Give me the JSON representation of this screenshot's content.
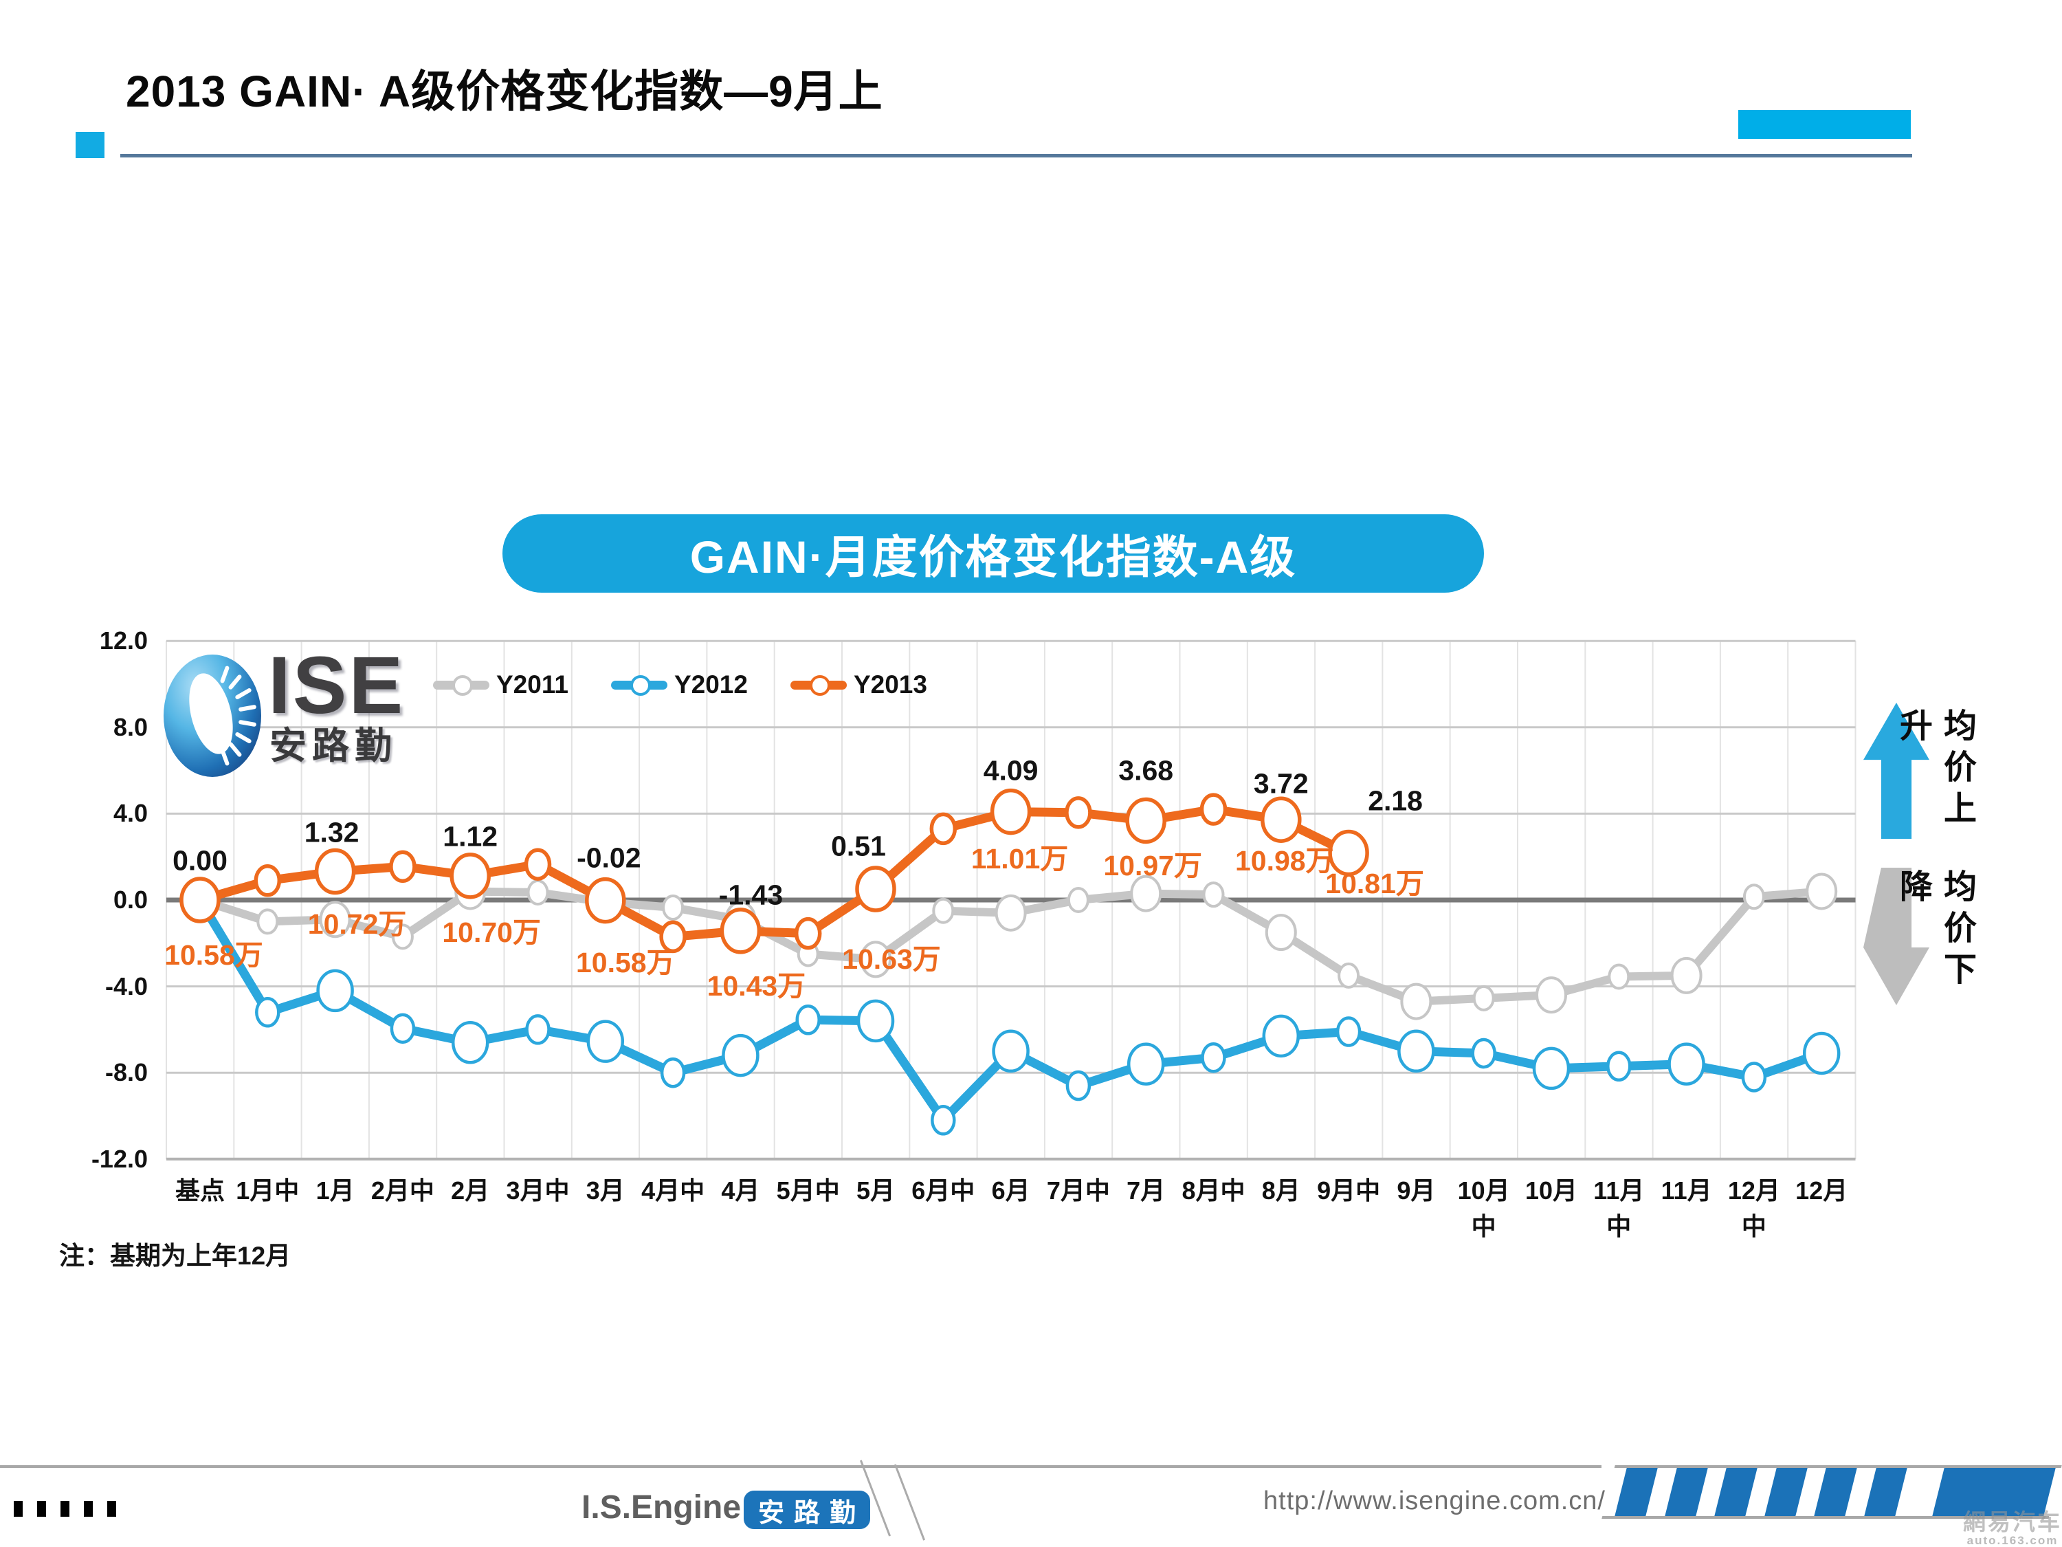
{
  "header": {
    "title": "2013 GAIN· A级价格变化指数—9月上"
  },
  "banner": {
    "title": "GAIN·月度价格变化指数-A级"
  },
  "logo": {
    "text": "ISE",
    "subtext": "安路勤"
  },
  "side_labels": {
    "up": "均价上升",
    "down": "均价下降"
  },
  "note": "注：基期为上年12月",
  "footer": {
    "brand": "I.S.Engine",
    "badge": "安路勤",
    "url": "http://www.isengine.com.cn/",
    "watermark_line1": "網易汽车",
    "watermark_line2": "auto.163.com"
  },
  "chart_data": {
    "type": "line",
    "title": "GAIN·月度价格变化指数-A级",
    "xlabel": "",
    "ylabel": "",
    "ylim": [
      -12,
      12
    ],
    "grid": true,
    "legend_position": "top-inside",
    "y_ticks": [
      "12.0",
      "8.0",
      "4.0",
      "0.0",
      "-4.0",
      "-8.0",
      "-12.0"
    ],
    "categories": [
      "基点",
      "1月中",
      "1月",
      "2月中",
      "2月",
      "3月中",
      "3月",
      "4月中",
      "4月",
      "5月中",
      "5月",
      "6月中",
      "6月",
      "7月中",
      "7月",
      "8月中",
      "8月",
      "9月中",
      "9月",
      "10月\n中",
      "10月",
      "11月\n中",
      "11月",
      "12月\n中",
      "12月"
    ],
    "series": [
      {
        "name": "Y2011",
        "color": "#C6C6C6",
        "values": [
          0.0,
          -1.0,
          -0.9,
          -1.7,
          0.4,
          0.35,
          -0.1,
          -0.35,
          -0.9,
          -2.5,
          -2.75,
          -0.5,
          -0.6,
          0.0,
          0.3,
          0.25,
          -1.5,
          -3.5,
          -4.7,
          -4.55,
          -4.4,
          -3.55,
          -3.5,
          0.15,
          0.4
        ]
      },
      {
        "name": "Y2012",
        "color": "#2BA7DD",
        "values": [
          0.0,
          -5.2,
          -4.2,
          -5.95,
          -6.6,
          -6.0,
          -6.55,
          -8.0,
          -7.2,
          -5.55,
          -5.6,
          -10.2,
          -7.0,
          -8.6,
          -7.6,
          -7.3,
          -6.3,
          -6.1,
          -7.0,
          -7.1,
          -7.8,
          -7.7,
          -7.6,
          -8.2,
          -7.1
        ]
      },
      {
        "name": "Y2013",
        "color": "#EE6A1D",
        "values": [
          0.0,
          0.9,
          1.32,
          1.55,
          1.12,
          1.65,
          -0.02,
          -1.7,
          -1.43,
          -1.55,
          0.51,
          3.3,
          4.09,
          4.05,
          3.68,
          4.2,
          3.72,
          2.18
        ]
      }
    ],
    "value_labels": [
      {
        "i": 0,
        "t": "0.00"
      },
      {
        "i": 2,
        "t": "1.32"
      },
      {
        "i": 4,
        "t": "1.12"
      },
      {
        "i": 6,
        "t": "-0.02"
      },
      {
        "i": 8,
        "t": "-1.43"
      },
      {
        "i": 10,
        "t": "0.51"
      },
      {
        "i": 12,
        "t": "4.09"
      },
      {
        "i": 14,
        "t": "3.68"
      },
      {
        "i": 16,
        "t": "3.72"
      },
      {
        "i": 17,
        "t": "2.18"
      }
    ],
    "price_labels": [
      {
        "i": 0,
        "t": "10.58万"
      },
      {
        "i": 2,
        "t": "10.72万"
      },
      {
        "i": 4,
        "t": "10.70万"
      },
      {
        "i": 6,
        "t": "10.58万"
      },
      {
        "i": 8,
        "t": "10.43万"
      },
      {
        "i": 10,
        "t": "10.63万"
      },
      {
        "i": 12,
        "t": "11.01万"
      },
      {
        "i": 14,
        "t": "10.97万"
      },
      {
        "i": 16,
        "t": "10.98万"
      },
      {
        "i": 17,
        "t": "10.81万"
      }
    ]
  }
}
